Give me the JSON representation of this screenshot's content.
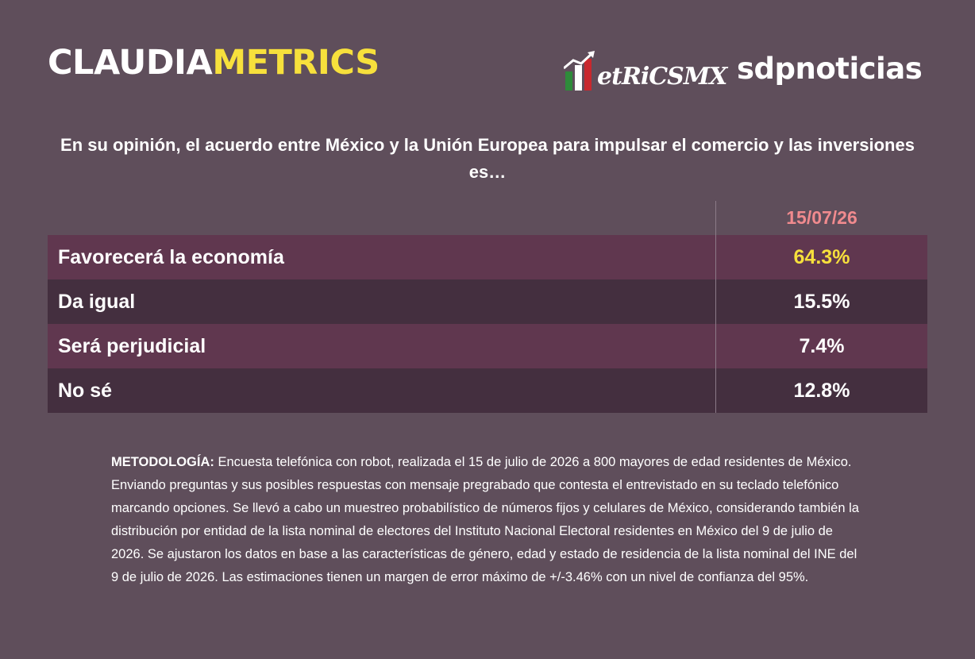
{
  "brand": {
    "claudia_part1": "CLAUDIA",
    "claudia_part2": "METRICS",
    "metricsmx": "etRiCSMX",
    "sdp": "sdpnoticias",
    "colors": {
      "yellow": "#f7e03c",
      "green": "#2e8b3a",
      "red": "#c8282e"
    }
  },
  "question": "En su opinión, el acuerdo entre México y la Unión Europea para impulsar el comercio y las inversiones es…",
  "chart_data": {
    "type": "table",
    "columns": [
      "15/07/26"
    ],
    "rows": [
      {
        "label": "Favorecerá la economía",
        "value": "64.3%"
      },
      {
        "label": "Da igual",
        "value": "15.5%"
      },
      {
        "label": "Será perjudicial",
        "value": "7.4%"
      },
      {
        "label": "No sé",
        "value": "12.8%"
      }
    ]
  },
  "methodology": {
    "label": "METODOLOGÍA:",
    "text": " Encuesta telefónica con robot, realizada el 15 de julio de 2026 a 800 mayores de edad residentes de México. Enviando preguntas y sus posibles respuestas con mensaje pregrabado que contesta el entrevistado en su teclado telefónico marcando opciones. Se llevó a cabo un muestreo probabilístico de números fijos y celulares de México, considerando también la distribución por entidad de la lista nominal de electores del Instituto Nacional Electoral residentes en México del 9 de julio de 2026. Se ajustaron los datos en base a las características de género, edad y estado de residencia de la lista nominal del INE del 9 de julio de 2026. Las estimaciones tienen un margen de error máximo de +/-3.46% con un nivel de confianza del 95%."
  }
}
